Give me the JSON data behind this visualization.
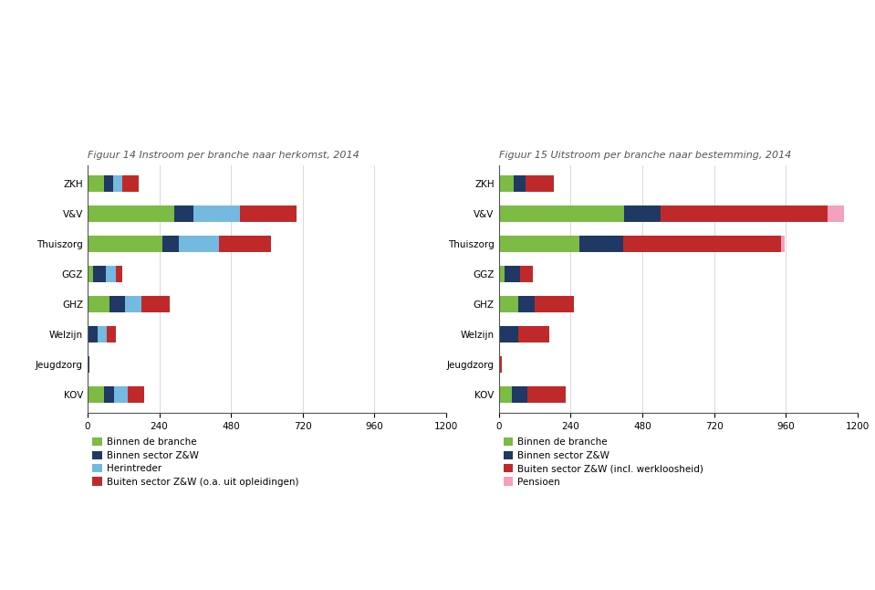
{
  "fig1_title": "Figuur 14 Instroom per branche naar herkomst, 2014",
  "fig2_title": "Figuur 15 Uitstroom per branche naar bestemming, 2014",
  "categories": [
    "KOV",
    "Jeugdzorg",
    "Welzijn",
    "GHZ",
    "GGZ",
    "Thuiszorg",
    "V&V",
    "ZKH"
  ],
  "fig1_data": {
    "Binnen de branche": [
      55,
      0,
      0,
      75,
      20,
      250,
      290,
      55
    ],
    "Binnen sector Z&W": [
      35,
      5,
      35,
      50,
      40,
      55,
      65,
      30
    ],
    "Herintreder": [
      45,
      0,
      30,
      55,
      35,
      135,
      155,
      30
    ],
    "Buiten sector Z&W (o.a. uit opleidingen)": [
      55,
      0,
      30,
      95,
      20,
      175,
      190,
      55
    ]
  },
  "fig2_data": {
    "Binnen de branche": [
      45,
      0,
      0,
      65,
      20,
      270,
      420,
      50
    ],
    "Binnen sector Z&W": [
      50,
      0,
      65,
      55,
      50,
      145,
      120,
      40
    ],
    "Buiten sector Z&W (incl. werkloosheid)": [
      130,
      10,
      105,
      130,
      45,
      530,
      560,
      95
    ],
    "Pensioen": [
      0,
      0,
      0,
      0,
      0,
      10,
      55,
      0
    ]
  },
  "fig1_colors": {
    "Binnen de branche": "#7CBB44",
    "Binnen sector Z&W": "#1F3864",
    "Herintreder": "#74B9E0",
    "Buiten sector Z&W (o.a. uit opleidingen)": "#C0292A"
  },
  "fig2_colors": {
    "Binnen de branche": "#7CBB44",
    "Binnen sector Z&W": "#1F3864",
    "Buiten sector Z&W (incl. werkloosheid)": "#C0292A",
    "Pensioen": "#F4A0C0"
  },
  "xlim": [
    0,
    1200
  ],
  "xticks": [
    0,
    240,
    480,
    720,
    960,
    1200
  ],
  "background_color": "#FFFFFF",
  "title_fontsize": 8.0,
  "tick_fontsize": 7.5,
  "legend_fontsize": 7.5,
  "bar_height": 0.55,
  "fig1_legend": [
    "Binnen de branche",
    "Binnen sector Z&W",
    "Herintreder",
    "Buiten sector Z&W (o.a. uit opleidingen)"
  ],
  "fig2_legend": [
    "Binnen de branche",
    "Binnen sector Z&W",
    "Buiten sector Z&W (incl. werkloosheid)",
    "Pensioen"
  ]
}
